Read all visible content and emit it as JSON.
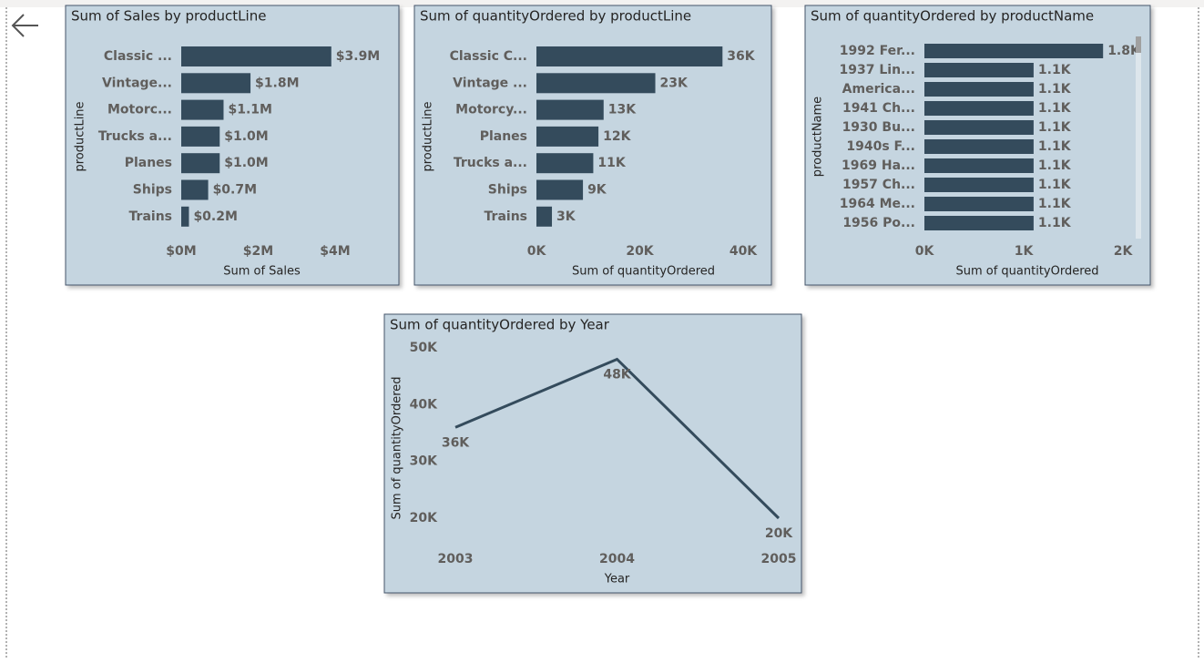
{
  "chart_data": [
    {
      "type": "hbar",
      "title": "Sum of Sales by productLine",
      "x_label": "Sum of Sales",
      "y_label": "productLine",
      "categories": [
        "Classic ...",
        "Vintage...",
        "Motorc...",
        "Trucks a...",
        "Planes",
        "Ships",
        "Trains"
      ],
      "values": [
        3900000,
        1800000,
        1100000,
        1000000,
        1000000,
        700000,
        200000
      ],
      "value_labels": [
        "$3.9M",
        "$1.8M",
        "$1.1M",
        "$1.0M",
        "$1.0M",
        "$0.7M",
        "$0.2M"
      ],
      "color": "#344b5c",
      "xlim": [
        0,
        4000000
      ],
      "xticks": [
        {
          "value": 0,
          "label": "$0M"
        },
        {
          "value": 2000000,
          "label": "$2M"
        },
        {
          "value": 4000000,
          "label": "$4M"
        }
      ]
    },
    {
      "type": "hbar",
      "title": "Sum of quantityOrdered by productLine",
      "x_label": "Sum of quantityOrdered",
      "y_label": "productLine",
      "categories": [
        "Classic C...",
        "Vintage ...",
        "Motorcy...",
        "Planes",
        "Trucks a...",
        "Ships",
        "Trains"
      ],
      "values": [
        36000,
        23000,
        13000,
        12000,
        11000,
        9000,
        3000
      ],
      "value_labels": [
        "36K",
        "23K",
        "13K",
        "12K",
        "11K",
        "9K",
        "3K"
      ],
      "color": "#344b5c",
      "xlim": [
        0,
        40000
      ],
      "xticks": [
        {
          "value": 0,
          "label": "0K"
        },
        {
          "value": 20000,
          "label": "20K"
        },
        {
          "value": 40000,
          "label": "40K"
        }
      ]
    },
    {
      "type": "hbar",
      "title": "Sum of quantityOrdered by productName",
      "x_label": "Sum of quantityOrdered",
      "y_label": "productName",
      "categories": [
        "1992 Fer...",
        "1937 Lin...",
        "America...",
        "1941 Ch...",
        "1930 Bu...",
        "1940s F...",
        "1969 Ha...",
        "1957 Ch...",
        "1964 Me...",
        "1956 Po..."
      ],
      "values": [
        1800,
        1100,
        1100,
        1100,
        1100,
        1100,
        1100,
        1100,
        1100,
        1100
      ],
      "value_labels": [
        "1.8K",
        "1.1K",
        "1.1K",
        "1.1K",
        "1.1K",
        "1.1K",
        "1.1K",
        "1.1K",
        "1.1K",
        "1.1K"
      ],
      "color": "#344b5c",
      "xlim": [
        0,
        2000
      ],
      "xticks": [
        {
          "value": 0,
          "label": "0K"
        },
        {
          "value": 1000,
          "label": "1K"
        },
        {
          "value": 2000,
          "label": "2K"
        }
      ]
    },
    {
      "type": "line",
      "title": "Sum of quantityOrdered by Year",
      "x_label": "Year",
      "y_label": "Sum of quantityOrdered",
      "x": [
        2003,
        2004,
        2005
      ],
      "values": [
        36000,
        48000,
        20000
      ],
      "value_labels": [
        "36K",
        "48K",
        "20K"
      ],
      "color": "#344b5c",
      "xlim": [
        2003,
        2005
      ],
      "xticks": [
        2003,
        2004,
        2005
      ],
      "ylim": [
        20000,
        50000
      ],
      "yticks": [
        {
          "value": 20000,
          "label": "20K"
        },
        {
          "value": 30000,
          "label": "30K"
        },
        {
          "value": 40000,
          "label": "40K"
        },
        {
          "value": 50000,
          "label": "50K"
        }
      ]
    }
  ]
}
